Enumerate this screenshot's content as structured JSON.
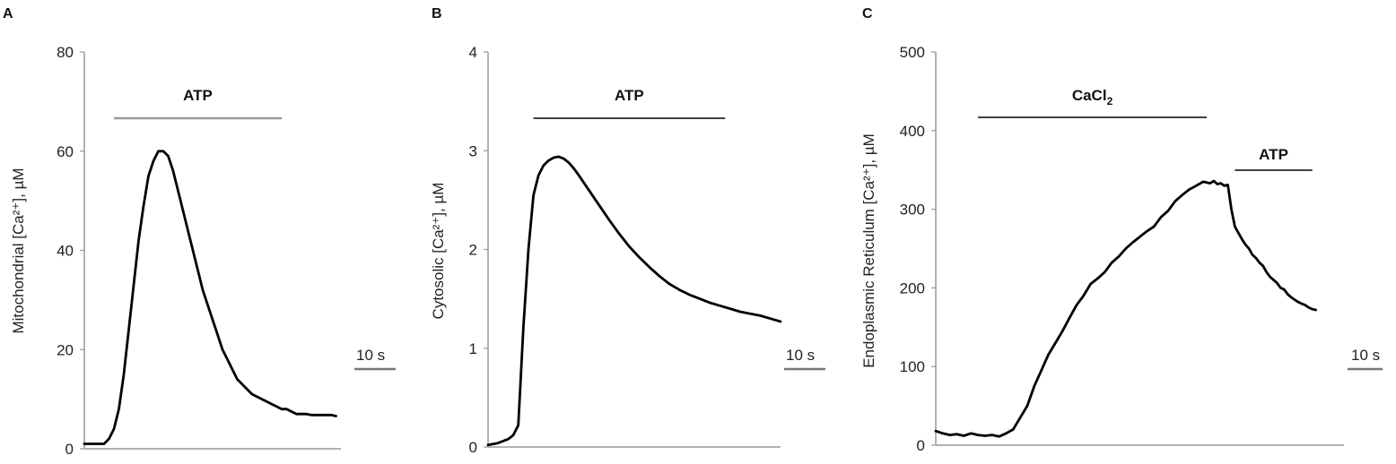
{
  "colors": {
    "trace": "#000000",
    "axis": "#999999",
    "atp_bar_a": "#999999",
    "stim_bar": "#000000",
    "scalebar": "#777777"
  },
  "chart_data": [
    {
      "type": "line",
      "panel": "A",
      "ylabel": "Mitochondrial [Ca²⁺], µM",
      "ylim": [
        0,
        80
      ],
      "yticks": [
        0,
        20,
        40,
        60,
        80
      ],
      "xlim": [
        0,
        52
      ],
      "x_unit": "s",
      "scalebar": {
        "label": "10 s",
        "duration": 10
      },
      "stimuli": [
        {
          "label": "ATP",
          "start": 6,
          "end": 40
        }
      ],
      "series": [
        {
          "x": [
            0,
            1,
            2,
            3,
            4,
            5,
            6,
            7,
            8,
            9,
            10,
            11,
            12,
            13,
            14,
            15,
            16,
            17,
            18,
            19,
            20,
            21,
            22,
            23,
            24,
            25,
            26,
            27,
            28,
            29,
            30,
            31,
            32,
            33,
            34,
            35,
            36,
            37,
            38,
            39,
            40,
            41,
            42,
            43,
            44,
            45,
            46,
            47,
            48,
            49,
            50,
            51
          ],
          "values": [
            1,
            1,
            1,
            1,
            1,
            2,
            4,
            8,
            15,
            24,
            33,
            42,
            49,
            55,
            58,
            60,
            60,
            59,
            56,
            52,
            48,
            44,
            40,
            36,
            32,
            29,
            26,
            23,
            20,
            18,
            16,
            14,
            13,
            12,
            11,
            10.5,
            10,
            9.5,
            9,
            8.5,
            8,
            8,
            7.5,
            7,
            7,
            7,
            6.8,
            6.8,
            6.8,
            6.8,
            6.8,
            6.6
          ]
        }
      ]
    },
    {
      "type": "line",
      "panel": "B",
      "ylabel": "Cytosolic [Ca²⁺], µM",
      "ylim": [
        0,
        4
      ],
      "yticks": [
        0,
        1,
        2,
        3,
        4
      ],
      "xlim": [
        0,
        58
      ],
      "x_unit": "s",
      "scalebar": {
        "label": "10 s",
        "duration": 10
      },
      "stimuli": [
        {
          "label": "ATP",
          "start": 9,
          "end": 47
        }
      ],
      "series": [
        {
          "x": [
            0,
            2,
            4,
            5,
            6,
            7,
            8,
            9,
            10,
            11,
            12,
            13,
            14,
            15,
            16,
            17,
            18,
            20,
            22,
            24,
            26,
            28,
            30,
            32,
            34,
            36,
            38,
            40,
            42,
            44,
            46,
            48,
            50,
            52,
            54,
            56,
            58
          ],
          "values": [
            0.02,
            0.04,
            0.08,
            0.12,
            0.22,
            1.2,
            2.0,
            2.55,
            2.75,
            2.85,
            2.9,
            2.93,
            2.94,
            2.92,
            2.88,
            2.82,
            2.75,
            2.6,
            2.45,
            2.3,
            2.16,
            2.03,
            1.92,
            1.82,
            1.73,
            1.65,
            1.59,
            1.54,
            1.5,
            1.46,
            1.43,
            1.4,
            1.37,
            1.35,
            1.33,
            1.3,
            1.27
          ]
        }
      ]
    },
    {
      "type": "line",
      "panel": "C",
      "ylabel": "Endoplasmic Reticulum [Ca²⁺], µM",
      "ylim": [
        0,
        500
      ],
      "yticks": [
        0,
        100,
        200,
        300,
        400,
        500
      ],
      "xlim": [
        0,
        116
      ],
      "x_unit": "s",
      "scalebar": {
        "label": "10 s",
        "duration": 10
      },
      "stimuli": [
        {
          "label": "CaCl",
          "subscript": "2",
          "start": 12,
          "end": 77
        },
        {
          "label": "ATP",
          "start": 85,
          "end": 107
        }
      ],
      "series": [
        {
          "x": [
            0,
            2,
            4,
            6,
            8,
            10,
            12,
            14,
            16,
            18,
            20,
            22,
            24,
            26,
            28,
            30,
            32,
            34,
            36,
            38,
            40,
            42,
            44,
            46,
            48,
            50,
            52,
            54,
            56,
            58,
            60,
            62,
            64,
            66,
            68,
            70,
            72,
            74,
            76,
            78,
            79,
            80,
            81,
            82,
            83,
            84,
            85,
            86,
            87,
            88,
            89,
            90,
            91,
            92,
            93,
            94,
            95,
            96,
            97,
            98,
            99,
            100,
            101,
            102,
            103,
            104,
            105,
            106,
            107,
            108
          ],
          "values": [
            18,
            15,
            13,
            14,
            12,
            15,
            13,
            12,
            13,
            11,
            15,
            20,
            35,
            50,
            75,
            95,
            115,
            130,
            145,
            162,
            178,
            190,
            205,
            212,
            220,
            232,
            240,
            250,
            258,
            265,
            272,
            278,
            290,
            298,
            310,
            318,
            325,
            330,
            335,
            333,
            336,
            332,
            333,
            330,
            331,
            300,
            278,
            270,
            262,
            255,
            250,
            242,
            238,
            232,
            228,
            220,
            214,
            210,
            206,
            200,
            198,
            192,
            188,
            185,
            182,
            180,
            178,
            175,
            173,
            172
          ]
        }
      ]
    }
  ]
}
